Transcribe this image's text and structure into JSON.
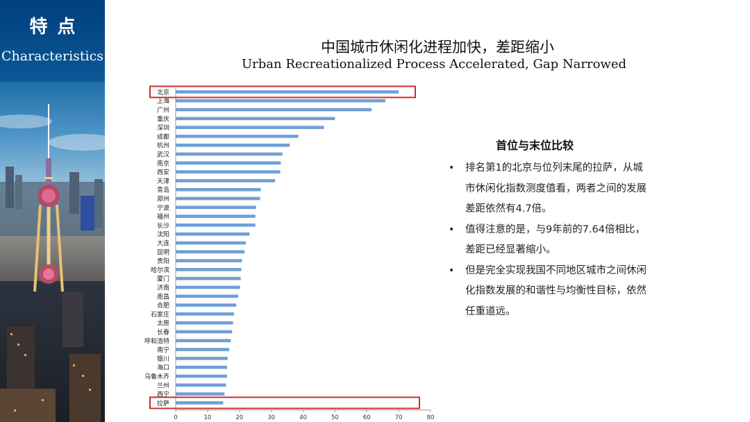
{
  "panel": {
    "title_cn": "特点",
    "title_en": "Characteristics"
  },
  "chart_data": {
    "type": "bar",
    "orientation": "horizontal",
    "title": "中国城市休闲化进程加快，差距缩小",
    "subtitle": "Urban Recreationalized Process Accelerated, Gap Narrowed",
    "categories": [
      "北京",
      "上海",
      "广州",
      "重庆",
      "深圳",
      "成都",
      "杭州",
      "武汉",
      "南京",
      "西安",
      "天津",
      "青岛",
      "郑州",
      "宁波",
      "福州",
      "长沙",
      "沈阳",
      "大连",
      "昆明",
      "贵阳",
      "哈尔滨",
      "厦门",
      "济南",
      "南昌",
      "合肥",
      "石家庄",
      "太原",
      "长春",
      "呼和浩特",
      "南宁",
      "银川",
      "海口",
      "乌鲁木齐",
      "兰州",
      "西宁",
      "拉萨"
    ],
    "values": [
      70,
      65.8,
      61.5,
      50,
      46.5,
      38.5,
      35.8,
      33.5,
      33,
      32.8,
      31.2,
      26.7,
      26.5,
      25.2,
      25,
      25,
      23.2,
      22,
      21.6,
      20.8,
      20.6,
      20.4,
      20.2,
      19.6,
      19,
      18.3,
      18,
      17.7,
      17.3,
      16.8,
      16.3,
      16.1,
      16.1,
      15.8,
      15.3,
      14.9
    ],
    "xlim": [
      0,
      80
    ],
    "xticks": [
      0,
      10,
      20,
      30,
      40,
      50,
      60,
      70,
      80
    ],
    "bar_color": "#6f9fd4",
    "highlight_color": "#cc2e2e",
    "highlighted": [
      "北京",
      "拉萨"
    ],
    "grid": false
  },
  "summary": {
    "heading": "首位与末位比较",
    "points": [
      "排名第1的北京与位列末尾的拉萨，从城市休闲化指数测度值看，两者之间的发展差距依然有4.7倍。",
      "值得注意的是，与9年前的7.64倍相比，差距已经显著缩小。",
      "但是完全实现我国不同地区城市之间休闲化指数发展的和谐性与均衡性目标，依然任重道远。"
    ]
  },
  "colors": {
    "panel_blue": "#0a4e86",
    "text": "#111111"
  }
}
